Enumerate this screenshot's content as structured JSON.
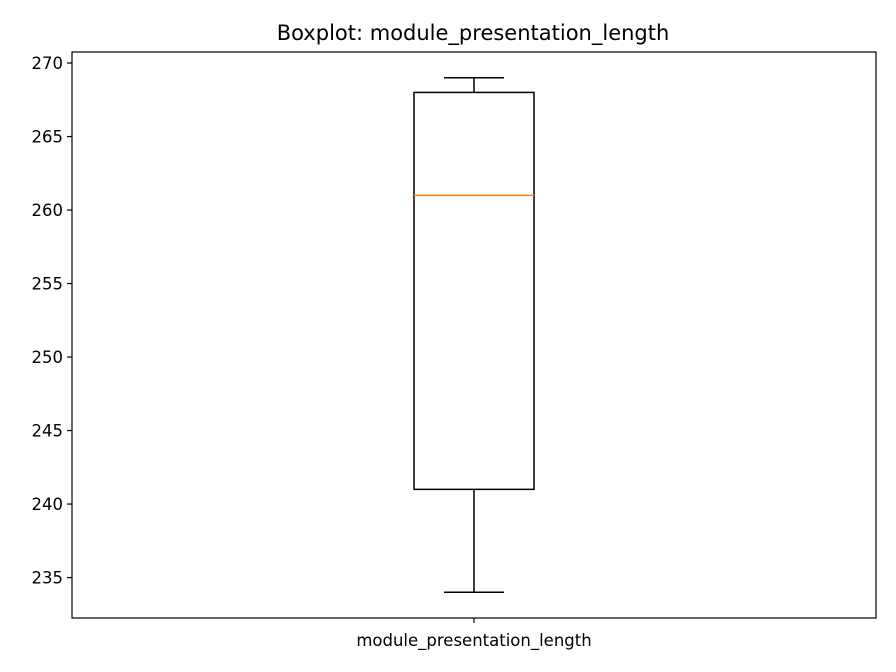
{
  "chart_data": {
    "type": "boxplot",
    "title": "Boxplot: module_presentation_length",
    "xlabel": "",
    "ylabel": "",
    "categories": [
      "module_presentation_length"
    ],
    "boxes": [
      {
        "category": "module_presentation_length",
        "whisker_low": 234,
        "q1": 241,
        "median": 261,
        "q3": 268,
        "whisker_high": 269
      }
    ],
    "y_ticks": [
      235,
      240,
      245,
      250,
      255,
      260,
      265,
      270
    ],
    "ylim": [
      232.25,
      270.75
    ],
    "grid": false,
    "colors": {
      "box": "#000000",
      "median": "#ff7f0e",
      "axes": "#000000"
    }
  }
}
